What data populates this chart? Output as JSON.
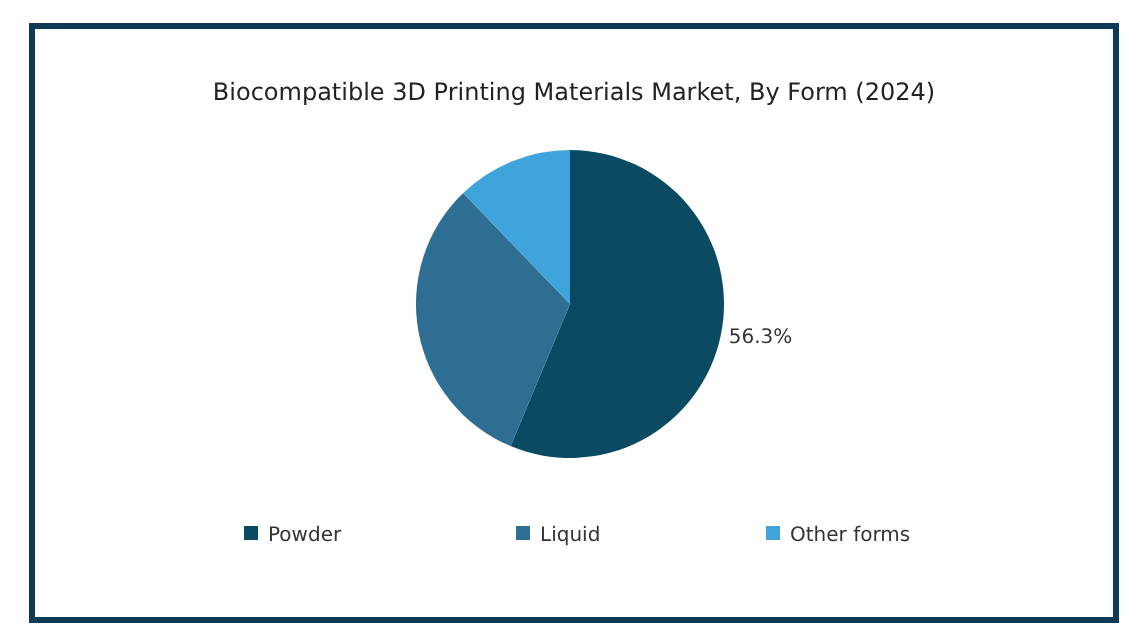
{
  "chart_data": {
    "type": "pie",
    "title": "Biocompatible 3D Printing Materials Market, By Form (2024)",
    "categories": [
      "Powder",
      "Liquid",
      "Other forms"
    ],
    "values": [
      56.3,
      31.5,
      12.2
    ],
    "colors": [
      "#0b4a63",
      "#2e6e93",
      "#3fa3dc"
    ],
    "value_labels": [
      "56.3%",
      null,
      null
    ],
    "legend": "bottom"
  }
}
